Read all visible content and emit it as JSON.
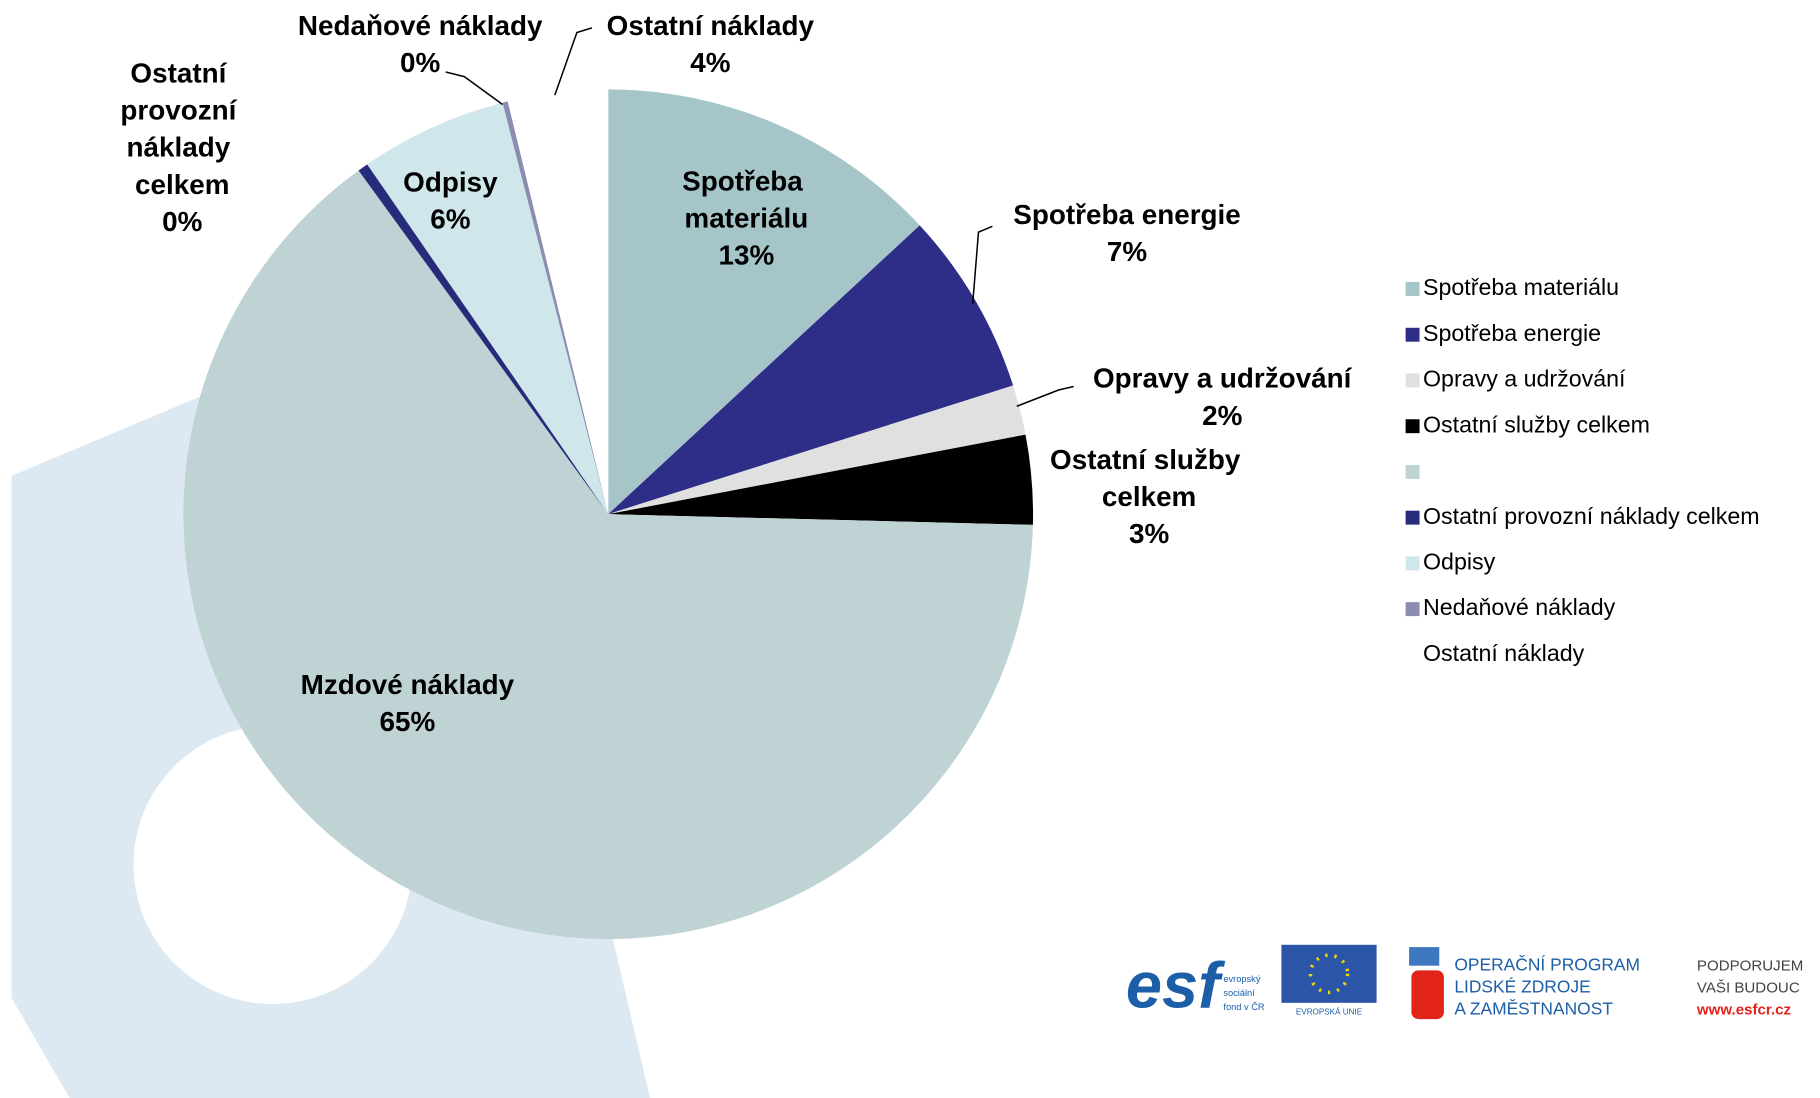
{
  "chart_data": {
    "type": "pie",
    "categories": [
      "Spotřeba materiálu",
      "Spotřeba energie",
      "Opravy a udržování",
      "Ostatní služby celkem",
      "Mzdové náklady",
      "Ostatní provozní náklady celkem",
      "Odpisy",
      "Nedaňové náklady",
      "Ostatní náklady"
    ],
    "values": [
      13.1,
      7.0,
      1.9,
      3.4,
      64.6,
      0.4,
      5.6,
      0.2,
      3.8
    ],
    "value_labels": [
      "13%",
      "7%",
      "2%",
      "3%",
      "65%",
      "0%",
      "6%",
      "0%",
      "4%"
    ],
    "colors": [
      "#a5c5c8",
      "#2e2d87",
      "#e0e0e0",
      "#000000",
      "#bfd2d4",
      "#262b7a",
      "#cfe6ea",
      "#8a8db0",
      "#ffffff"
    ],
    "legend_labels": [
      "Spotřeba materiálu",
      "Spotřeba energie",
      "Opravy a udržování",
      "Ostatní služby celkem",
      null,
      "Ostatní provozní náklady celkem",
      "Odpisy",
      "Nedaňové náklady",
      "Ostatní náklady"
    ],
    "legend_position": "right"
  },
  "logos": {
    "esf": "esf",
    "esf_text": [
      "evropský",
      "sociální",
      "fond v ČR"
    ],
    "eu": "EVROPSKÁ UNIE",
    "program": [
      "OPERAČNÍ PROGRAM",
      "LIDSKÉ ZDROJE",
      "A ZAMĚSTNANOST"
    ],
    "slogan": [
      "PODPORUJEM",
      "VAŠI BUDOUC"
    ],
    "url": "www.esfcr.cz"
  }
}
